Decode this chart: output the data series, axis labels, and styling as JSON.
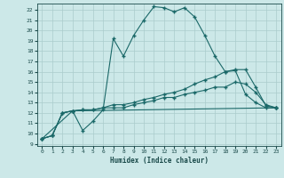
{
  "xlabel": "Humidex (Indice chaleur)",
  "ylabel": "",
  "bg_color": "#cce8e8",
  "line_color": "#1a6868",
  "grid_color": "#aacccc",
  "xlim": [
    -0.5,
    23.5
  ],
  "ylim": [
    8.8,
    22.6
  ],
  "xticks": [
    0,
    1,
    2,
    3,
    4,
    5,
    6,
    7,
    8,
    9,
    10,
    11,
    12,
    13,
    14,
    15,
    16,
    17,
    18,
    19,
    20,
    21,
    22,
    23
  ],
  "yticks": [
    9,
    10,
    11,
    12,
    13,
    14,
    15,
    16,
    17,
    18,
    19,
    20,
    21,
    22
  ],
  "series": [
    {
      "x": [
        0,
        1,
        2,
        3,
        4,
        5,
        6,
        7,
        8,
        9,
        10,
        11,
        12,
        13,
        14,
        15,
        16,
        17,
        18,
        19,
        20,
        21,
        22,
        23
      ],
      "y": [
        9.5,
        9.8,
        12.0,
        12.2,
        10.3,
        11.2,
        12.3,
        19.2,
        17.5,
        19.5,
        21.0,
        22.3,
        22.2,
        21.8,
        22.2,
        21.3,
        19.5,
        17.5,
        16.0,
        16.1,
        13.8,
        13.0,
        12.5,
        12.5
      ]
    },
    {
      "x": [
        0,
        1,
        2,
        3,
        4,
        5,
        6,
        7,
        8,
        9,
        10,
        11,
        12,
        13,
        14,
        15,
        16,
        17,
        18,
        19,
        20,
        21,
        22,
        23
      ],
      "y": [
        9.5,
        9.8,
        12.0,
        12.2,
        12.3,
        12.3,
        12.5,
        12.8,
        12.8,
        13.0,
        13.3,
        13.5,
        13.8,
        14.0,
        14.3,
        14.8,
        15.2,
        15.5,
        16.0,
        16.2,
        16.2,
        14.5,
        12.7,
        12.5
      ]
    },
    {
      "x": [
        0,
        1,
        2,
        3,
        4,
        5,
        6,
        7,
        8,
        9,
        10,
        11,
        12,
        13,
        14,
        15,
        16,
        17,
        18,
        19,
        20,
        21,
        22,
        23
      ],
      "y": [
        9.5,
        9.8,
        12.0,
        12.2,
        12.3,
        12.3,
        12.5,
        12.5,
        12.5,
        12.8,
        13.0,
        13.2,
        13.5,
        13.5,
        13.8,
        14.0,
        14.2,
        14.5,
        14.5,
        15.0,
        14.8,
        14.0,
        12.8,
        12.5
      ]
    },
    {
      "x": [
        0,
        3,
        23
      ],
      "y": [
        9.5,
        12.2,
        12.5
      ]
    }
  ]
}
